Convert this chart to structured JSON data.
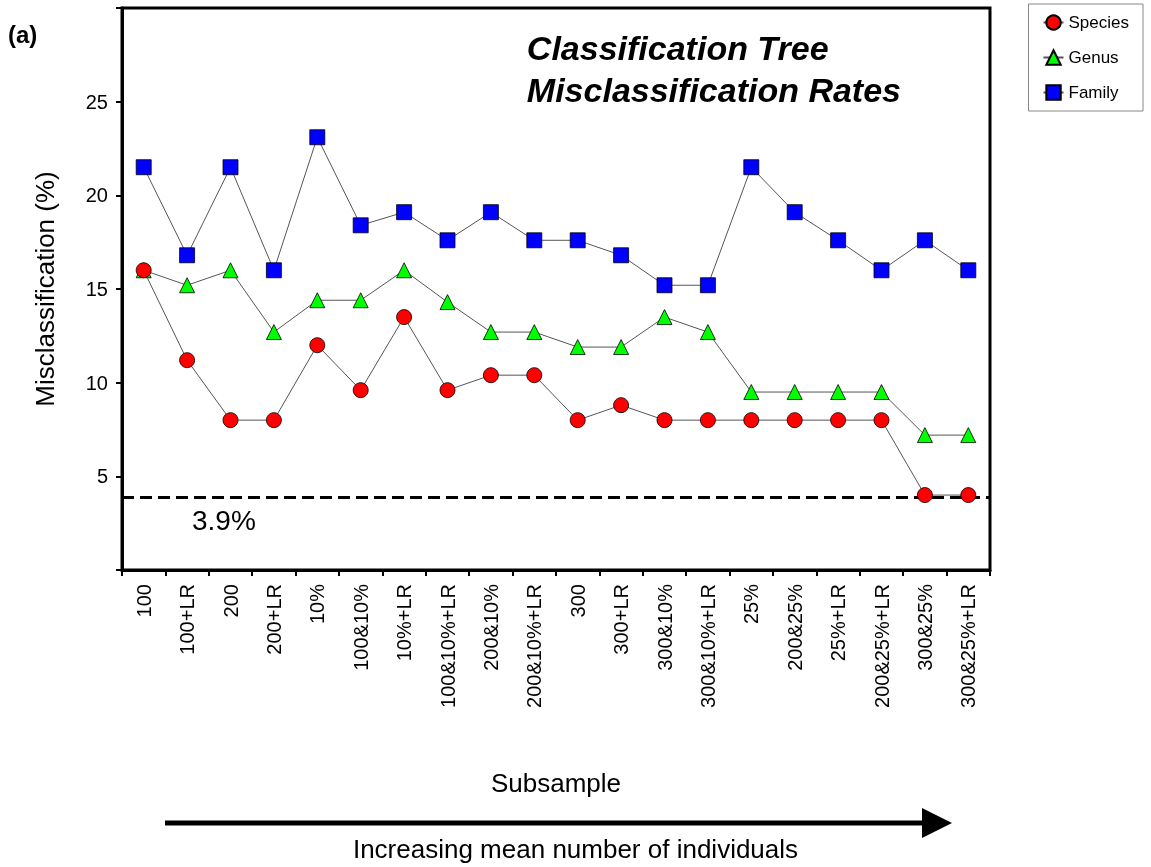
{
  "chart_data": {
    "type": "line",
    "title": "Classification Tree\nMisclassification Rates",
    "xlabel": "Subsample",
    "ylabel": "Misclassification (%)",
    "annotations": [
      "(a)",
      "Increasing mean number of individuals"
    ],
    "categories": [
      "100",
      "100+LR",
      "200",
      "200+LR",
      "10%",
      "100&10%",
      "10%+LR",
      "100&10%+LR",
      "200&10%",
      "200&10%+LR",
      "300",
      "300+LR",
      "300&10%",
      "300&10%+LR",
      "25%",
      "200&25%",
      "25%+LR",
      "200&25%+LR",
      "300&25%",
      "300&25%+LR"
    ],
    "series": [
      {
        "name": "Species",
        "color": "#ff0000",
        "marker": "circle",
        "values": [
          16.0,
          11.2,
          8.0,
          8.0,
          12.0,
          9.6,
          13.5,
          9.6,
          10.4,
          10.4,
          8.0,
          8.8,
          8.0,
          8.0,
          8.0,
          8.0,
          8.0,
          8.0,
          4.0,
          4.0
        ]
      },
      {
        "name": "Genus",
        "color": "#00ff00",
        "marker": "triangle",
        "values": [
          16.0,
          15.2,
          16.0,
          12.7,
          14.4,
          14.4,
          16.0,
          14.3,
          12.7,
          12.7,
          11.9,
          11.9,
          13.5,
          12.7,
          9.5,
          9.5,
          9.5,
          9.5,
          7.2,
          7.2
        ]
      },
      {
        "name": "Family",
        "color": "#0000ff",
        "marker": "square",
        "values": [
          21.5,
          16.8,
          21.5,
          16.0,
          23.1,
          18.4,
          19.1,
          17.6,
          19.1,
          17.6,
          17.6,
          16.8,
          15.2,
          15.2,
          21.5,
          19.1,
          17.6,
          16.0,
          17.6,
          16.0
        ]
      }
    ],
    "ylim": [
      0,
      30
    ],
    "yticks": [
      {
        "value": 0,
        "label": null
      },
      5,
      10,
      15,
      20,
      25,
      {
        "value": 30,
        "label": null
      }
    ],
    "ref_lines": [
      {
        "axis": "y",
        "value": 3.9,
        "label": "3.9%",
        "color": "#000000",
        "line_style": "dashed"
      }
    ],
    "grid": false,
    "legend": "top right",
    "line_style": "solid"
  }
}
